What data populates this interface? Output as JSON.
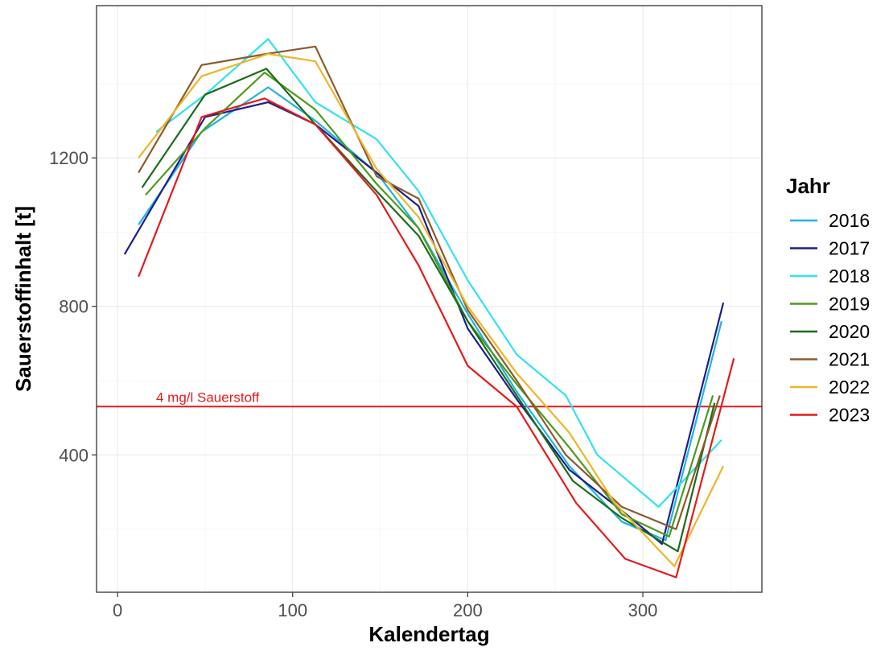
{
  "chart_data": {
    "type": "line",
    "xlabel": "Kalendertag",
    "ylabel": "Sauerstoffinhalt [t]",
    "xlim": [
      -12,
      368
    ],
    "ylim": [
      30,
      1610
    ],
    "x_ticks": [
      0,
      100,
      200,
      300
    ],
    "y_ticks": [
      400,
      800,
      1200
    ],
    "grid": true,
    "legend": {
      "title": "Jahr",
      "position": "right"
    },
    "reference_line": {
      "y": 530,
      "label": "4 mg/l Sauerstoff",
      "color": "#e41a1c"
    },
    "series": [
      {
        "name": "2016",
        "color": "#1fb4e0",
        "x": [
          12,
          48,
          86,
          113,
          148,
          172,
          200,
          228,
          258,
          288,
          313,
          345
        ],
        "y": [
          1020,
          1270,
          1390,
          1300,
          1160,
          1010,
          780,
          570,
          370,
          220,
          170,
          760
        ]
      },
      {
        "name": "2017",
        "color": "#1e1e8c",
        "x": [
          4,
          50,
          86,
          113,
          148,
          172,
          200,
          228,
          258,
          288,
          311,
          346
        ],
        "y": [
          940,
          1310,
          1350,
          1290,
          1160,
          1070,
          740,
          550,
          360,
          250,
          160,
          810
        ]
      },
      {
        "name": "2018",
        "color": "#33e1ee",
        "x": [
          22,
          50,
          86,
          113,
          148,
          172,
          200,
          228,
          256,
          274,
          309,
          345
        ],
        "y": [
          1270,
          1370,
          1520,
          1350,
          1250,
          1110,
          870,
          670,
          560,
          400,
          260,
          440
        ]
      },
      {
        "name": "2019",
        "color": "#4f9a1a",
        "x": [
          16,
          50,
          84,
          113,
          148,
          172,
          200,
          228,
          258,
          288,
          315,
          340
        ],
        "y": [
          1100,
          1280,
          1430,
          1330,
          1130,
          1010,
          760,
          590,
          420,
          240,
          180,
          560
        ]
      },
      {
        "name": "2020",
        "color": "#1a6d1a",
        "x": [
          14,
          50,
          85,
          113,
          148,
          172,
          200,
          228,
          260,
          288,
          320,
          341
        ],
        "y": [
          1120,
          1370,
          1440,
          1290,
          1110,
          990,
          760,
          560,
          330,
          230,
          140,
          540
        ]
      },
      {
        "name": "2021",
        "color": "#8c5a2d",
        "x": [
          12,
          48,
          85,
          113,
          148,
          172,
          200,
          228,
          256,
          288,
          319,
          344
        ],
        "y": [
          1160,
          1450,
          1480,
          1500,
          1150,
          1090,
          790,
          600,
          400,
          260,
          200,
          560
        ]
      },
      {
        "name": "2022",
        "color": "#f0b429",
        "x": [
          12,
          48,
          86,
          113,
          148,
          172,
          200,
          228,
          258,
          284,
          318,
          346
        ],
        "y": [
          1200,
          1420,
          1480,
          1460,
          1170,
          1040,
          800,
          620,
          460,
          270,
          100,
          370
        ]
      },
      {
        "name": "2023",
        "color": "#e41a1c",
        "x": [
          12,
          48,
          84,
          113,
          148,
          172,
          200,
          228,
          262,
          290,
          319,
          352
        ],
        "y": [
          880,
          1310,
          1360,
          1290,
          1100,
          910,
          640,
          530,
          270,
          120,
          70,
          660
        ]
      }
    ]
  }
}
